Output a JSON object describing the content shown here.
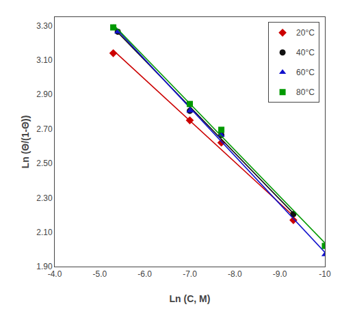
{
  "chart_data": {
    "type": "scatter",
    "x_label": "Ln (C, M)",
    "y_label": "Ln (Θ/(1-Θ))",
    "xlim": [
      -4.0,
      -10.0
    ],
    "ylim": [
      1.9,
      3.35
    ],
    "xticks": [
      {
        "value": -4.0,
        "label": "-4.0"
      },
      {
        "value": -5.0,
        "label": "-5.0"
      },
      {
        "value": -6.0,
        "label": "-6.0"
      },
      {
        "value": -7.0,
        "label": "-7.0"
      },
      {
        "value": -8.0,
        "label": "-8.0"
      },
      {
        "value": -9.0,
        "label": "-9.0"
      },
      -10
    ],
    "yticks": [
      {
        "value": 1.9,
        "label": "1.90"
      },
      {
        "value": 2.1,
        "label": "2.10"
      },
      {
        "value": 2.3,
        "label": "2.30"
      },
      {
        "value": 2.5,
        "label": "2.50"
      },
      {
        "value": 2.7,
        "label": "2.70"
      },
      {
        "value": 2.9,
        "label": "2.90"
      },
      {
        "value": 3.1,
        "label": "3.10"
      },
      {
        "value": 3.3,
        "label": "3.30"
      }
    ],
    "grid": false,
    "legend": "upper right",
    "series": [
      {
        "name": "20°C",
        "color": "#cc0000",
        "marker": "diamond",
        "x": [
          -5.3,
          -7.0,
          -7.7,
          -9.3
        ],
        "y": [
          3.14,
          2.75,
          2.62,
          2.17
        ],
        "fit_x": [
          -5.3,
          -9.3
        ],
        "fit_y": [
          3.1571,
          2.1949
        ]
      },
      {
        "name": "40°C",
        "color": "#111111",
        "marker": "circle",
        "x": [
          -5.4,
          -7.0,
          -7.7,
          -9.3
        ],
        "y": [
          3.265,
          2.805,
          2.665,
          2.205
        ],
        "fit_x": [
          -5.4,
          -9.3
        ],
        "fit_y": [
          3.2606,
          2.2094
        ]
      },
      {
        "name": "60°C",
        "color": "#1111cc",
        "marker": "triangle-up",
        "x": [
          -5.4,
          -7.0,
          -7.7,
          -10.0
        ],
        "y": [
          3.265,
          2.805,
          2.665,
          1.97
        ],
        "fit_x": [
          -5.4,
          -10.0
        ],
        "fit_y": [
          3.2719,
          1.9825
        ]
      },
      {
        "name": "80°C",
        "color": "#009900",
        "marker": "square",
        "x": [
          -5.3,
          -7.0,
          -7.7,
          -10.0
        ],
        "y": [
          3.29,
          2.845,
          2.695,
          2.02
        ],
        "fit_x": [
          -5.3,
          -10.0
        ],
        "fit_y": [
          3.3063,
          2.0377
        ]
      }
    ]
  }
}
